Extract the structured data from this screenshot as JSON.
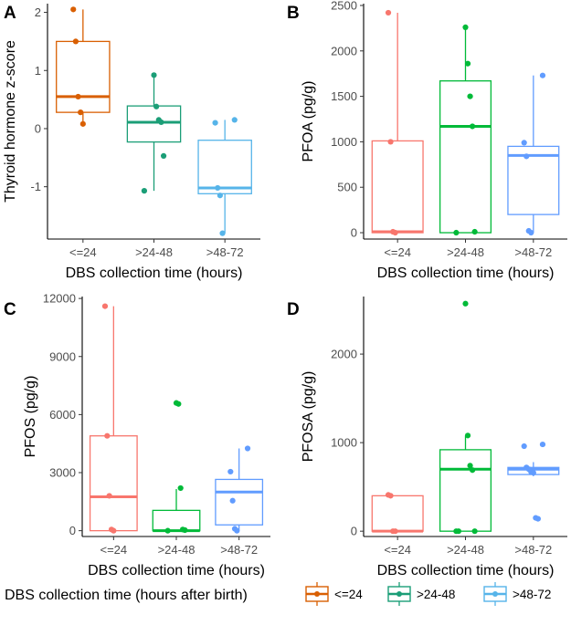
{
  "chart_data": [
    {
      "type": "box",
      "panel": "A",
      "title": "",
      "xlabel": "DBS collection time (hours)",
      "ylabel": "Thyroid hormone z-score",
      "categories": [
        "<=24",
        ">24-48",
        ">48-72"
      ],
      "ylim": [
        -1.9,
        2.15
      ],
      "yticks": [
        -1,
        0,
        1,
        2
      ],
      "ytick_labels": [
        "-1",
        "0",
        "1",
        "2"
      ],
      "boxes": [
        {
          "q1": 0.28,
          "median": 0.55,
          "q3": 1.5,
          "whisker_low": 0.08,
          "whisker_high": 2.05
        },
        {
          "q1": -0.23,
          "median": 0.11,
          "q3": 0.39,
          "whisker_low": -1.07,
          "whisker_high": 0.92
        },
        {
          "q1": -1.12,
          "median": -1.02,
          "q3": -0.2,
          "whisker_low": -1.8,
          "whisker_high": 0.15
        }
      ],
      "points": [
        [
          2.05,
          1.5,
          0.55,
          0.28,
          0.08
        ],
        [
          0.92,
          0.38,
          0.15,
          0.11,
          -0.47,
          -1.07
        ],
        [
          0.15,
          0.1,
          -1.02,
          -1.15,
          -1.8
        ]
      ]
    },
    {
      "type": "box",
      "panel": "B",
      "title": "",
      "xlabel": "DBS collection time (hours)",
      "ylabel": "PFOA (pg/g)",
      "categories": [
        "<=24",
        ">24-48",
        ">48-72"
      ],
      "ylim": [
        -70,
        2520
      ],
      "yticks": [
        0,
        500,
        1000,
        1500,
        2000,
        2500
      ],
      "ytick_labels": [
        "0",
        "500",
        "1000",
        "1500",
        "2000",
        "2500"
      ],
      "boxes": [
        {
          "q1": 0,
          "median": 10,
          "q3": 1010,
          "whisker_low": 0,
          "whisker_high": 2420
        },
        {
          "q1": 0,
          "median": 1170,
          "q3": 1670,
          "whisker_low": 0,
          "whisker_high": 2260
        },
        {
          "q1": 200,
          "median": 850,
          "q3": 950,
          "whisker_low": 0,
          "whisker_high": 1730
        }
      ],
      "points": [
        [
          2420,
          1000,
          10,
          0
        ],
        [
          2260,
          1860,
          1500,
          1170,
          10,
          0
        ],
        [
          1730,
          990,
          840,
          20,
          0
        ]
      ]
    },
    {
      "type": "box",
      "panel": "C",
      "title": "",
      "xlabel": "DBS collection time (hours)",
      "ylabel": "PFOS (pg/g)",
      "categories": [
        "<=24",
        ">24-48",
        ">48-72"
      ],
      "ylim": [
        -300,
        12100
      ],
      "yticks": [
        0,
        3000,
        6000,
        9000,
        12000
      ],
      "ytick_labels": [
        "0",
        "3000",
        "6000",
        "9000",
        "12000"
      ],
      "boxes": [
        {
          "q1": 0,
          "median": 1750,
          "q3": 4900,
          "whisker_low": 0,
          "whisker_high": 11600
        },
        {
          "q1": 0,
          "median": 0,
          "q3": 1050,
          "whisker_low": 0,
          "whisker_high": 2150
        },
        {
          "q1": 300,
          "median": 2000,
          "q3": 2650,
          "whisker_low": 0,
          "whisker_high": 4250
        }
      ],
      "points": [
        [
          11600,
          4900,
          1800,
          60,
          0
        ],
        [
          6600,
          6550,
          2200,
          60,
          30,
          0
        ],
        [
          4250,
          3050,
          1550,
          100,
          0
        ]
      ]
    },
    {
      "type": "box",
      "panel": "D",
      "title": "",
      "xlabel": "DBS collection time (hours)",
      "ylabel": "PFOSA (pg/g)",
      "categories": [
        "<=24",
        ">24-48",
        ">48-72"
      ],
      "ylim": [
        -60,
        2650
      ],
      "yticks": [
        0,
        1000,
        2000
      ],
      "ytick_labels": [
        "0",
        "1000",
        "2000"
      ],
      "boxes": [
        {
          "q1": 0,
          "median": 0,
          "q3": 400,
          "whisker_low": 0,
          "whisker_high": 400
        },
        {
          "q1": 0,
          "median": 700,
          "q3": 920,
          "whisker_low": 0,
          "whisker_high": 1080
        },
        {
          "q1": 640,
          "median": 700,
          "q3": 720,
          "whisker_low": 620,
          "whisker_high": 780
        }
      ],
      "points": [
        [
          410,
          400,
          0,
          0
        ],
        [
          2570,
          1080,
          740,
          690,
          0,
          0,
          0
        ],
        [
          980,
          960,
          720,
          700,
          670,
          660,
          150,
          140
        ]
      ]
    }
  ],
  "colors": [
    "#D95F02",
    "#1B9E77",
    "#56B4E9"
  ],
  "panel_colors": [
    [
      "#D95F02",
      "#1B9E77",
      "#56B4E9"
    ],
    [
      "#F8766D",
      "#00BA38",
      "#619CFF"
    ],
    [
      "#F8766D",
      "#00BA38",
      "#619CFF"
    ],
    [
      "#F8766D",
      "#00BA38",
      "#619CFF"
    ]
  ],
  "legend": {
    "title": "DBS collection time (hours after birth)",
    "entries": [
      "<=24",
      ">24-48",
      ">48-72"
    ],
    "colors": [
      "#D95F02",
      "#1B9E77",
      "#56B4E9"
    ]
  }
}
